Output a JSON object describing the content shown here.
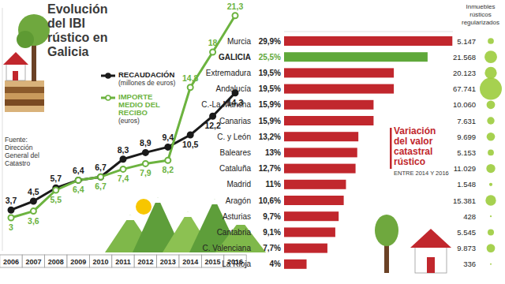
{
  "chart_data": [
    {
      "type": "line",
      "title": "Evolución del IBI rústico en Galicia",
      "source": "Fuente: Dirección General del Catastro",
      "categories": [
        "2006",
        "2007",
        "2008",
        "2009",
        "2010",
        "2011",
        "2012",
        "2013",
        "2014",
        "2015",
        "2016"
      ],
      "series": [
        {
          "name": "RECAUDACIÓN",
          "unit": "(millones de euros)",
          "color": "#1a1a1a",
          "marker": "circle",
          "values": [
            3.7,
            4.5,
            5.7,
            6.4,
            6.7,
            8.3,
            8.9,
            9.4,
            10.5,
            12.2,
            14.3
          ],
          "value_labels": [
            "3,7",
            "4,5",
            "5,7",
            "6,4",
            "6,7",
            "8,3",
            "8,9",
            "9,4",
            "10,5",
            "12,2",
            "14,3"
          ]
        },
        {
          "name": "IMPORTE MEDIO DEL RECIBO",
          "unit": "(euros)",
          "color": "#6cb33f",
          "marker": "circle",
          "values": [
            3,
            3.6,
            5.5,
            6.4,
            6.7,
            7.4,
            7.9,
            8.2,
            14.8,
            18,
            21.3
          ],
          "value_labels": [
            "3",
            "3,6",
            "5,5",
            "6,4",
            "6,7",
            "7,4",
            "7,9",
            "8,2",
            "14,8",
            "18",
            "21,3"
          ]
        }
      ],
      "ylim": [
        0,
        22
      ],
      "tick_labels": "x",
      "data_labels": true,
      "legend": "top"
    },
    {
      "type": "bar",
      "orientation": "horizontal",
      "title": "Variación del valor catastral rústico",
      "subtitle": "ENTRE 2014 Y 2016",
      "categories": [
        "Murcia",
        "GALICIA",
        "Extremadura",
        "Andalucía",
        "C.-La Mancha",
        "Canarias",
        "C. y León",
        "Baleares",
        "Cataluña",
        "Madrid",
        "Aragón",
        "Asturias",
        "Cantabria",
        "C. Valenciana",
        "La Rioja"
      ],
      "values": [
        29.9,
        25.5,
        19.5,
        19.5,
        15.9,
        15.9,
        13.2,
        13,
        12.7,
        11,
        10.6,
        9.7,
        9.1,
        7.7,
        4
      ],
      "value_labels": [
        "29,9%",
        "25,5%",
        "19,5%",
        "19,5%",
        "15,9%",
        "15,9%",
        "13,2%",
        "13%",
        "12,7%",
        "11%",
        "10,6%",
        "9,7%",
        "9,1%",
        "7,7%",
        "4%"
      ],
      "colors": [
        "#c1272d",
        "#5fa83a",
        "#c1272d",
        "#c1272d",
        "#c1272d",
        "#c1272d",
        "#c1272d",
        "#c1272d",
        "#c1272d",
        "#c1272d",
        "#c1272d",
        "#c1272d",
        "#c1272d",
        "#c1272d",
        "#c1272d"
      ],
      "xlim": [
        0,
        30
      ],
      "data_labels": true,
      "tick_labels": "y",
      "inmuebles": {
        "title": "Inmuebles rústicos regularizados",
        "color": "#9ccc3d",
        "values": [
          5147,
          21568,
          20123,
          67741,
          10060,
          7631,
          9699,
          5153,
          11029,
          1548,
          15381,
          428,
          5545,
          9873,
          336
        ],
        "value_labels": [
          "5.147",
          "21.568",
          "20.123",
          "67.741",
          "10.060",
          "7.631",
          "9.699",
          "5.153",
          "11.029",
          "1.548",
          "15.381",
          "428",
          "5.545",
          "9.873",
          "336"
        ]
      }
    }
  ]
}
